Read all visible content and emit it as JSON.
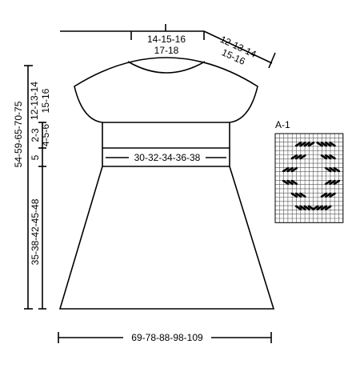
{
  "neck_width": {
    "line1": "14-15-16",
    "line2": "17-18"
  },
  "shoulder": {
    "line1": "12-13-14",
    "line2": "15-16"
  },
  "total_length": "54-59-65-70-75",
  "yoke_depth": {
    "line1": "12-13-14",
    "line2": "15-16"
  },
  "section_a": {
    "line1": "2-3",
    "line2": "4-5-6"
  },
  "band_height": "5",
  "skirt_length": "35-38-42-45-48",
  "waist_width": "30-32-34-36-38",
  "hem_width": "69-78-88-98-109",
  "chart": {
    "title": "A-1",
    "cols": 16,
    "rows": 21,
    "marks": [
      {
        "row": 2,
        "cols": [
          5,
          6,
          7,
          8
        ],
        "dir": "rise"
      },
      {
        "row": 2,
        "cols": [
          10,
          11,
          12,
          13
        ],
        "dir": "fall"
      },
      {
        "row": 5,
        "cols": [
          4,
          5,
          6
        ],
        "dir": "rise"
      },
      {
        "row": 5,
        "cols": [
          11,
          12,
          13
        ],
        "dir": "fall"
      },
      {
        "row": 8,
        "cols": [
          2,
          3,
          4
        ],
        "dir": "rise"
      },
      {
        "row": 8,
        "cols": [
          12,
          13,
          14
        ],
        "dir": "fall"
      },
      {
        "row": 11,
        "cols": [
          2,
          3,
          4
        ],
        "dir": "fall"
      },
      {
        "row": 11,
        "cols": [
          12,
          13,
          14
        ],
        "dir": "rise"
      },
      {
        "row": 14,
        "cols": [
          4,
          5,
          6
        ],
        "dir": "fall"
      },
      {
        "row": 14,
        "cols": [
          11,
          12,
          13
        ],
        "dir": "rise"
      },
      {
        "row": 17,
        "cols": [
          5,
          6,
          7,
          8
        ],
        "dir": "fall"
      },
      {
        "row": 17,
        "cols": [
          9,
          10,
          11,
          12
        ],
        "dir": "rise"
      }
    ]
  }
}
